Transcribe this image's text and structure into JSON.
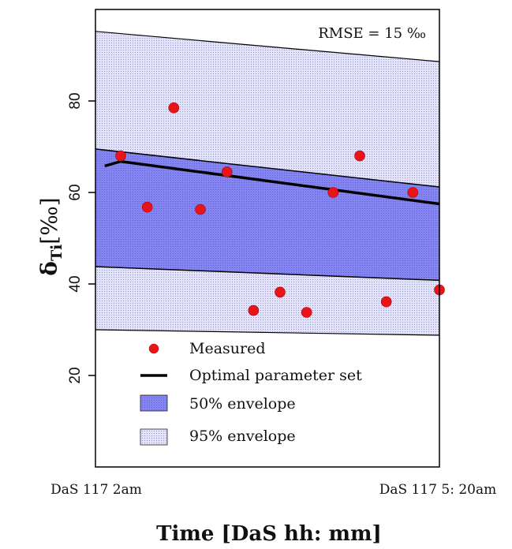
{
  "chart_data": {
    "type": "scatter",
    "xlabel": "Time [DaS hh: mm]",
    "ylabel_main": "δ",
    "ylabel_sub": "Ti",
    "ylabel_unit": "[‰]",
    "x_tick_labels": [
      "DaS 117 2am",
      "DaS 117 5: 20am"
    ],
    "y_ticks": [
      20,
      40,
      60,
      80
    ],
    "ylim": [
      0,
      100
    ],
    "xlim": [
      -0.35,
      12.6
    ],
    "annotation": "RMSE = 15 ‰",
    "legend": {
      "placement": "bottom-center",
      "entries": [
        {
          "label": "Measured",
          "kind": "point",
          "color": "#e8141a"
        },
        {
          "label": "Optimal parameter set",
          "kind": "line",
          "color": "#000000"
        },
        {
          "label": "50% envelope",
          "kind": "band",
          "color": "#8080f0"
        },
        {
          "label": "95% envelope",
          "kind": "band",
          "color": "#d2d2f5"
        }
      ]
    },
    "measured": [
      {
        "x": 0.6,
        "y": 68
      },
      {
        "x": 1.6,
        "y": 56.8
      },
      {
        "x": 2.6,
        "y": 78.5
      },
      {
        "x": 3.6,
        "y": 56.3
      },
      {
        "x": 4.6,
        "y": 64.5
      },
      {
        "x": 5.6,
        "y": 34.2
      },
      {
        "x": 6.6,
        "y": 38.2
      },
      {
        "x": 7.6,
        "y": 33.8
      },
      {
        "x": 8.6,
        "y": 60
      },
      {
        "x": 9.6,
        "y": 68
      },
      {
        "x": 10.6,
        "y": 36.1
      },
      {
        "x": 11.6,
        "y": 60
      },
      {
        "x": 12.6,
        "y": 38.7
      }
    ],
    "optimal_line": [
      {
        "x": 0,
        "y": 65.8
      },
      {
        "x": 0.6,
        "y": 66.8
      },
      {
        "x": 12.6,
        "y": 57.5
      }
    ],
    "envelope_95": {
      "upper": [
        {
          "x": -0.35,
          "y": 95.2
        },
        {
          "x": 12.6,
          "y": 88.6
        }
      ],
      "lower": [
        {
          "x": -0.35,
          "y": 30
        },
        {
          "x": 12.6,
          "y": 28.8
        }
      ]
    },
    "envelope_50": {
      "upper": [
        {
          "x": -0.35,
          "y": 69.5
        },
        {
          "x": 12.6,
          "y": 61.2
        }
      ],
      "lower": [
        {
          "x": -0.35,
          "y": 43.8
        },
        {
          "x": 12.6,
          "y": 40.8
        }
      ]
    },
    "colors": {
      "env50": "#8080f0",
      "env95": "#d2d2f5",
      "point": "#e8141a",
      "line": "#000000"
    }
  }
}
